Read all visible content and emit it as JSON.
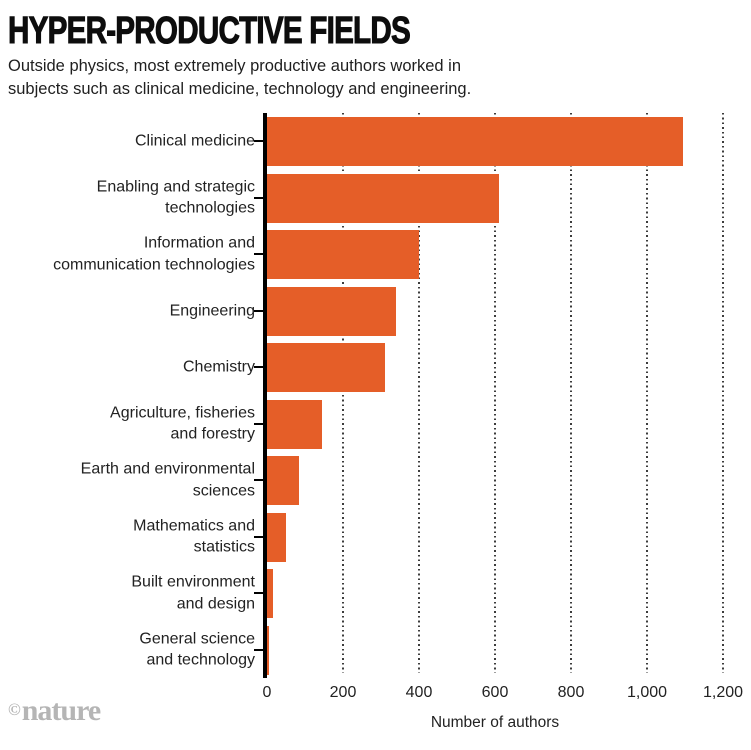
{
  "header": {
    "title": "HYPER-PRODUCTIVE FIELDS",
    "subtitle": "Outside physics, most extremely productive authors worked in\nsubjects such as clinical medicine, technology and engineering."
  },
  "chart_data": {
    "type": "bar",
    "orientation": "horizontal",
    "title": "HYPER-PRODUCTIVE FIELDS",
    "categories": [
      "Clinical medicine",
      "Enabling and strategic\ntechnologies",
      "Information and\ncommunication technologies",
      "Engineering",
      "Chemistry",
      "Agriculture, fisheries\nand forestry",
      "Earth and environmental\nsciences",
      "Mathematics and\nstatistics",
      "Built environment\nand design",
      "General science\nand technology"
    ],
    "values": [
      1095,
      610,
      400,
      340,
      310,
      145,
      85,
      50,
      15,
      5
    ],
    "xlabel": "Number of authors",
    "xlim": [
      0,
      1200
    ],
    "xticks": [
      0,
      200,
      400,
      600,
      800,
      1000,
      1200
    ],
    "xtick_labels": [
      "0",
      "200",
      "400",
      "600",
      "800",
      "1,000",
      "1,200"
    ],
    "bar_color": "#e55e28",
    "axis_color": "#000000",
    "grid": "dotted-vertical",
    "legend": "none"
  },
  "credit": {
    "copyright": "©",
    "brand": "nature"
  }
}
